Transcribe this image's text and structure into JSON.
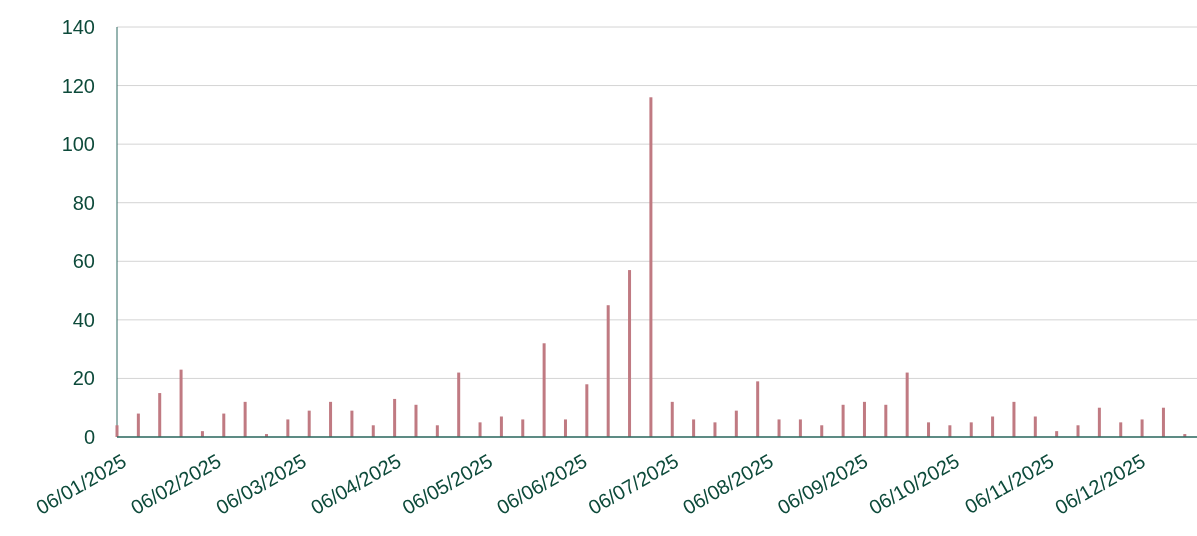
{
  "chart_data": {
    "type": "bar",
    "color": "#c07a82",
    "grid": "y",
    "x": [
      "2025-01-06",
      "2025-01-13",
      "2025-01-20",
      "2025-01-27",
      "2025-02-03",
      "2025-02-10",
      "2025-02-17",
      "2025-02-24",
      "2025-03-03",
      "2025-03-10",
      "2025-03-17",
      "2025-03-24",
      "2025-03-31",
      "2025-04-07",
      "2025-04-14",
      "2025-04-21",
      "2025-04-28",
      "2025-05-05",
      "2025-05-12",
      "2025-05-19",
      "2025-05-26",
      "2025-06-02",
      "2025-06-09",
      "2025-06-16",
      "2025-06-23",
      "2025-06-30",
      "2025-07-07",
      "2025-07-14",
      "2025-07-21",
      "2025-07-28",
      "2025-08-04",
      "2025-08-11",
      "2025-08-18",
      "2025-08-25",
      "2025-09-01",
      "2025-09-08",
      "2025-09-15",
      "2025-09-22",
      "2025-09-29",
      "2025-10-06",
      "2025-10-13",
      "2025-10-20",
      "2025-10-27",
      "2025-11-03",
      "2025-11-10",
      "2025-11-17",
      "2025-11-24",
      "2025-12-01",
      "2025-12-08",
      "2025-12-15",
      "2025-12-22"
    ],
    "values": [
      4,
      8,
      15,
      23,
      2,
      8,
      12,
      1,
      6,
      9,
      12,
      9,
      4,
      13,
      11,
      4,
      22,
      5,
      7,
      6,
      32,
      6,
      18,
      45,
      57,
      116,
      12,
      6,
      5,
      9,
      19,
      6,
      6,
      4,
      11,
      12,
      11,
      22,
      5,
      4,
      5,
      7,
      12,
      7,
      2,
      4,
      10,
      5,
      6,
      10,
      1
    ],
    "xlim": [
      "2025-01-06",
      "2025-12-26"
    ],
    "xticks": [
      {
        "value": "2025-01-06",
        "label": "06/01/2025"
      },
      {
        "value": "2025-02-06",
        "label": "06/02/2025"
      },
      {
        "value": "2025-03-06",
        "label": "06/03/2025"
      },
      {
        "value": "2025-04-06",
        "label": "06/04/2025"
      },
      {
        "value": "2025-05-06",
        "label": "06/05/2025"
      },
      {
        "value": "2025-06-06",
        "label": "06/06/2025"
      },
      {
        "value": "2025-07-06",
        "label": "06/07/2025"
      },
      {
        "value": "2025-08-06",
        "label": "06/08/2025"
      },
      {
        "value": "2025-09-06",
        "label": "06/09/2025"
      },
      {
        "value": "2025-10-06",
        "label": "06/10/2025"
      },
      {
        "value": "2025-11-06",
        "label": "06/11/2025"
      },
      {
        "value": "2025-12-06",
        "label": "06/12/2025"
      }
    ],
    "ylim": [
      0,
      140
    ],
    "yticks": [
      0,
      20,
      40,
      60,
      80,
      100,
      120,
      140
    ]
  }
}
